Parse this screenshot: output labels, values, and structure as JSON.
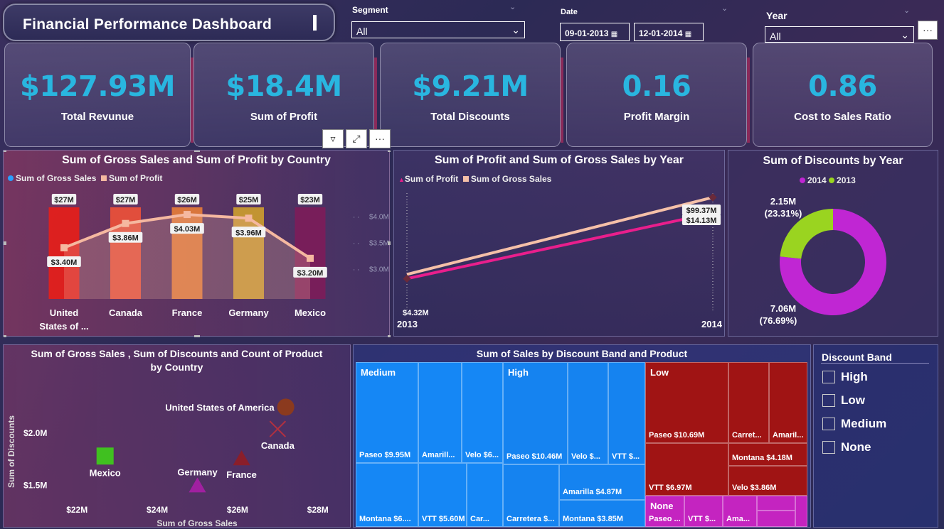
{
  "header": {
    "title": "Financial Performance Dashboard",
    "segment_label": "Segment",
    "segment_value": "All",
    "date_label": "Date",
    "date_start": "09-01-2013",
    "date_end": "12-01-2014",
    "year_label": "Year",
    "year_value": "All",
    "more_label": "···"
  },
  "kpis": [
    {
      "value": "$127.93M",
      "label": "Total Revunue"
    },
    {
      "value": "$18.4M",
      "label": "Sum of Profit"
    },
    {
      "value": "$9.21M",
      "label": "Total Discounts"
    },
    {
      "value": "0.16",
      "label": "Profit Margin"
    },
    {
      "value": "0.86",
      "label": "Cost to Sales Ratio"
    }
  ],
  "visual_toolbar": {
    "more": "···"
  },
  "chart_data": [
    {
      "type": "bar",
      "title": "Sum of Gross Sales and Sum of Profit by Country",
      "categories": [
        "United States of ...",
        "Canada",
        "France",
        "Germany",
        "Mexico"
      ],
      "series": [
        {
          "name": "Sum of  Gross Sales",
          "values": [
            27,
            27,
            26,
            25,
            23
          ],
          "labels": [
            "$27M",
            "$27M",
            "$26M",
            "$25M",
            "$23M"
          ],
          "color": "#e3242b"
        },
        {
          "name": "Sum of  Profit",
          "values": [
            3.4,
            3.86,
            4.03,
            3.96,
            3.2
          ],
          "labels": [
            "$3.40M",
            "$3.86M",
            "$4.03M",
            "$3.96M",
            "$3.20M"
          ],
          "color": "#f5b8a0"
        }
      ],
      "bar_colors": [
        "#e3201b",
        "#e8503a",
        "#e07a3a",
        "#c89a30",
        "#7a1e5a"
      ],
      "y2_ticks": [
        "$4.0M",
        "$3.5M",
        "$3.0M"
      ],
      "y2_range": [
        2.7,
        4.3
      ],
      "y_range": [
        0,
        31
      ],
      "x_labels_line1": [
        "United",
        "Canada",
        "France",
        "Germany",
        "Mexico"
      ],
      "x_labels_line2": [
        "States of ...",
        "",
        "",
        "",
        ""
      ]
    },
    {
      "type": "line",
      "title": "Sum of Profit and Sum of Gross Sales by Year",
      "x": [
        "2013",
        "2014"
      ],
      "series": [
        {
          "name": "Sum of  Profit",
          "values": [
            4.32,
            14.13
          ],
          "labels": [
            "$4.32M",
            "$14.13M"
          ],
          "color": "#e91e8c"
        },
        {
          "name": "Sum of  Gross Sales",
          "values": [
            28.0,
            99.37
          ],
          "labels": [
            "",
            "$99.37M"
          ],
          "color": "#f5c0a8"
        }
      ]
    },
    {
      "type": "pie",
      "title": "Sum of Discounts by Year",
      "legend": [
        "2014",
        "2013"
      ],
      "slices": [
        {
          "name": "2014",
          "value": 7.06,
          "label": "7.06M",
          "pct": "(76.69%)",
          "color": "#c026d3"
        },
        {
          "name": "2013",
          "value": 2.15,
          "label": "2.15M",
          "pct": "(23.31%)",
          "color": "#9ad420"
        }
      ]
    },
    {
      "type": "scatter",
      "title_line1": "Sum of Gross Sales , Sum of Discounts and Count of Product",
      "title_line2": "by Country",
      "xlabel": "Sum of Gross Sales",
      "ylabel": "Sum of Discounts",
      "x_ticks": [
        "$22M",
        "$24M",
        "$26M",
        "$28M"
      ],
      "y_ticks": [
        "$2.0M",
        "$1.5M"
      ],
      "xlim": [
        21.5,
        28.5
      ],
      "ylim": [
        1.4,
        2.3
      ],
      "points": [
        {
          "name": "United States of America",
          "x": 27.2,
          "y": 2.25,
          "shape": "circle",
          "color": "#8b3a1e"
        },
        {
          "name": "Canada",
          "x": 27.0,
          "y": 2.04,
          "shape": "x",
          "color": "#b03040"
        },
        {
          "name": "Mexico",
          "x": 22.7,
          "y": 1.78,
          "shape": "square",
          "color": "#40c020"
        },
        {
          "name": "France",
          "x": 26.1,
          "y": 1.76,
          "shape": "triangle",
          "color": "#8a1e2a"
        },
        {
          "name": "Germany",
          "x": 25.0,
          "y": 1.5,
          "shape": "triangle",
          "color": "#a020a0"
        }
      ]
    },
    {
      "type": "table",
      "title": "Sum of Sales by Discount Band and Product",
      "groups": [
        {
          "name": "Medium",
          "color": "#1587f5",
          "cells": [
            "Paseo $9.95M",
            "Amarill...",
            "Velo $6...",
            "Montana $6....",
            "VTT $5.60M",
            "Car..."
          ]
        },
        {
          "name": "High",
          "color": "#1583f0",
          "cells": [
            "Paseo $10.46M",
            "Velo $...",
            "VTT $...",
            "Carretera $...",
            "Amarilla $4.87M",
            "Montana $3.85M"
          ]
        },
        {
          "name": "Low",
          "color": "#a01414",
          "cells": [
            "Paseo $10.69M",
            "Carret...",
            "Amaril...",
            "Montana $4.18M",
            "VTT $6.97M",
            "Velo $3.86M"
          ]
        },
        {
          "name": "None",
          "color": "#c424c0",
          "cells": [
            "Paseo ...",
            "VTT $...",
            "Ama..."
          ]
        }
      ]
    }
  ],
  "discount_band": {
    "title": "Discount Band",
    "options": [
      "High",
      "Low",
      "Medium",
      "None"
    ]
  }
}
